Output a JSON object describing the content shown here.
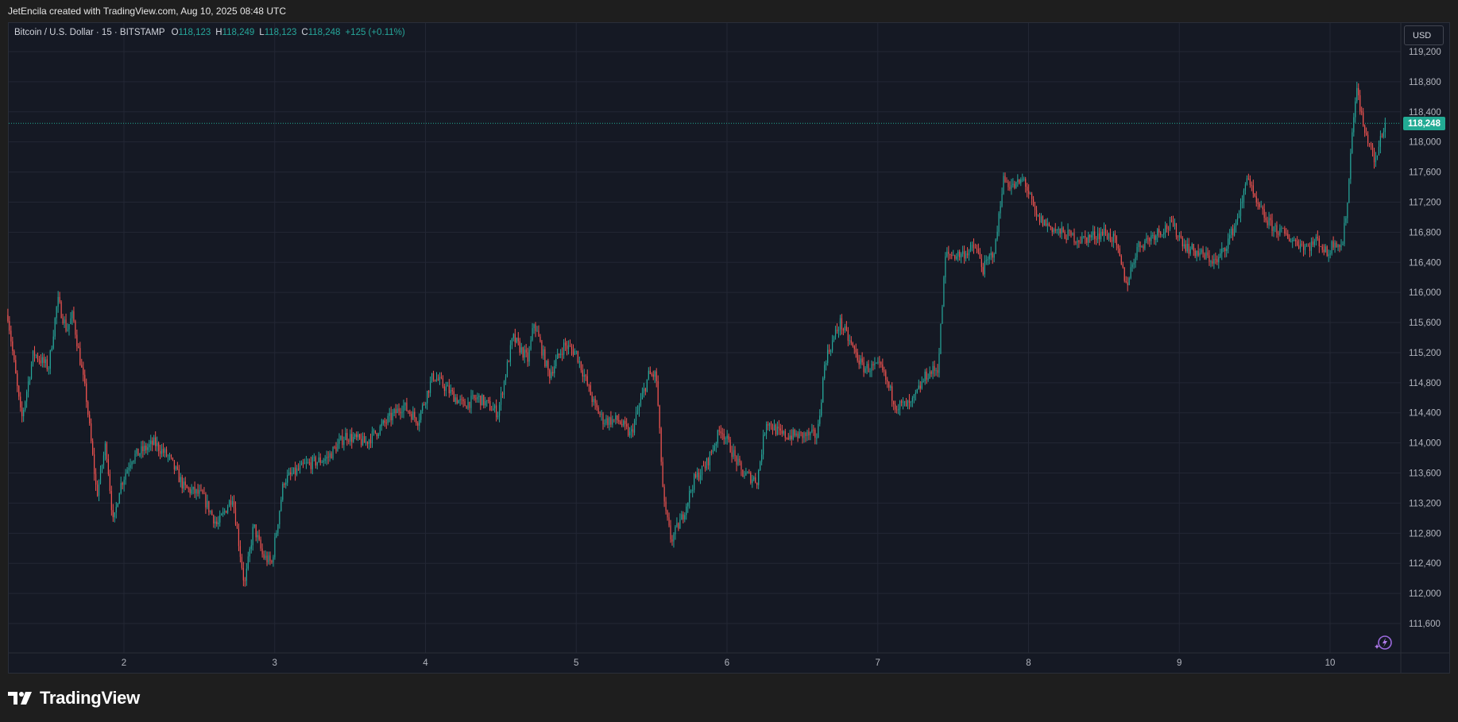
{
  "header": {
    "credit": "JetEncila created with TradingView.com, Aug 10, 2025 08:48 UTC"
  },
  "legend": {
    "symbol": "Bitcoin / U.S. Dollar · 15 · BITSTAMP",
    "open_label": "O",
    "open": "118,123",
    "high_label": "H",
    "high": "118,249",
    "low_label": "L",
    "low": "118,123",
    "close_label": "C",
    "close": "118,248",
    "change": "+125 (+0.11%)"
  },
  "currency_button": "USD",
  "last_price_tag": "118,248",
  "footer": {
    "brand": "TradingView"
  },
  "colors": {
    "up": "#26a69a",
    "down": "#ef5350",
    "background": "#151924",
    "grid": "#232734",
    "last_price_line": "#22ab94"
  },
  "icons": {
    "footer_logo": "tradingview-logo-icon",
    "fx": "sparkle-lightning-icon"
  },
  "chart_data": {
    "type": "candlestick",
    "interval": "15",
    "y_axis": {
      "range": [
        111300,
        119300
      ],
      "ticks": [
        111600,
        112000,
        112400,
        112800,
        113200,
        113600,
        114000,
        114400,
        114800,
        115200,
        115600,
        116000,
        116400,
        116800,
        117200,
        117600,
        118000,
        118400,
        118800,
        119200
      ],
      "tick_labels": [
        "111,600",
        "112,000",
        "112,400",
        "112,800",
        "113,200",
        "113,600",
        "114,000",
        "114,400",
        "114,800",
        "115,200",
        "115,600",
        "116,000",
        "116,400",
        "116,800",
        "117,200",
        "117,600",
        "118,000",
        "118,400",
        "118,800",
        "119,200"
      ]
    },
    "x_axis": {
      "range_days": [
        1.23,
        10.47
      ],
      "ticks": [
        2,
        3,
        4,
        5,
        6,
        7,
        8,
        9,
        10
      ],
      "tick_labels": [
        "2",
        "3",
        "4",
        "5",
        "6",
        "7",
        "8",
        "9",
        "10"
      ]
    },
    "grid": true,
    "last_price": 118248,
    "price_path": [
      [
        1.23,
        115700
      ],
      [
        1.32,
        114300
      ],
      [
        1.4,
        115200
      ],
      [
        1.5,
        115000
      ],
      [
        1.56,
        115900
      ],
      [
        1.62,
        115500
      ],
      [
        1.66,
        115700
      ],
      [
        1.75,
        114600
      ],
      [
        1.82,
        113300
      ],
      [
        1.88,
        114000
      ],
      [
        1.93,
        112900
      ],
      [
        1.97,
        113400
      ],
      [
        2.05,
        113800
      ],
      [
        2.2,
        114000
      ],
      [
        2.3,
        113800
      ],
      [
        2.4,
        113400
      ],
      [
        2.52,
        113300
      ],
      [
        2.62,
        112900
      ],
      [
        2.72,
        113300
      ],
      [
        2.8,
        112100
      ],
      [
        2.86,
        112900
      ],
      [
        2.92,
        112500
      ],
      [
        2.98,
        112400
      ],
      [
        3.06,
        113500
      ],
      [
        3.2,
        113700
      ],
      [
        3.35,
        113800
      ],
      [
        3.47,
        114100
      ],
      [
        3.6,
        114000
      ],
      [
        3.75,
        114300
      ],
      [
        3.85,
        114500
      ],
      [
        3.95,
        114300
      ],
      [
        4.05,
        114900
      ],
      [
        4.2,
        114600
      ],
      [
        4.25,
        114500
      ],
      [
        4.35,
        114600
      ],
      [
        4.48,
        114400
      ],
      [
        4.58,
        115400
      ],
      [
        4.68,
        115100
      ],
      [
        4.72,
        115600
      ],
      [
        4.82,
        114900
      ],
      [
        4.92,
        115300
      ],
      [
        5.0,
        115200
      ],
      [
        5.12,
        114500
      ],
      [
        5.18,
        114300
      ],
      [
        5.28,
        114300
      ],
      [
        5.36,
        114100
      ],
      [
        5.42,
        114500
      ],
      [
        5.48,
        114900
      ],
      [
        5.53,
        114900
      ],
      [
        5.58,
        113200
      ],
      [
        5.63,
        112700
      ],
      [
        5.7,
        113000
      ],
      [
        5.78,
        113500
      ],
      [
        5.86,
        113700
      ],
      [
        5.96,
        114200
      ],
      [
        6.1,
        113600
      ],
      [
        6.2,
        113500
      ],
      [
        6.26,
        114300
      ],
      [
        6.36,
        114100
      ],
      [
        6.5,
        114100
      ],
      [
        6.6,
        114100
      ],
      [
        6.65,
        115100
      ],
      [
        6.75,
        115600
      ],
      [
        6.9,
        115000
      ],
      [
        7.02,
        115000
      ],
      [
        7.12,
        114500
      ],
      [
        7.22,
        114500
      ],
      [
        7.32,
        114900
      ],
      [
        7.4,
        115000
      ],
      [
        7.45,
        116500
      ],
      [
        7.55,
        116500
      ],
      [
        7.65,
        116600
      ],
      [
        7.7,
        116300
      ],
      [
        7.78,
        116600
      ],
      [
        7.83,
        117500
      ],
      [
        7.9,
        117400
      ],
      [
        7.97,
        117500
      ],
      [
        8.05,
        117000
      ],
      [
        8.2,
        116800
      ],
      [
        8.35,
        116700
      ],
      [
        8.5,
        116800
      ],
      [
        8.57,
        116700
      ],
      [
        8.65,
        116100
      ],
      [
        8.72,
        116600
      ],
      [
        8.85,
        116800
      ],
      [
        8.95,
        116900
      ],
      [
        9.05,
        116600
      ],
      [
        9.15,
        116500
      ],
      [
        9.25,
        116400
      ],
      [
        9.35,
        116800
      ],
      [
        9.42,
        117200
      ],
      [
        9.45,
        117600
      ],
      [
        9.5,
        117200
      ],
      [
        9.6,
        116900
      ],
      [
        9.75,
        116700
      ],
      [
        9.85,
        116600
      ],
      [
        9.92,
        116700
      ],
      [
        9.98,
        116500
      ],
      [
        10.03,
        116700
      ],
      [
        10.08,
        116600
      ],
      [
        10.12,
        117300
      ],
      [
        10.15,
        118300
      ],
      [
        10.18,
        118700
      ],
      [
        10.23,
        118100
      ],
      [
        10.26,
        118000
      ],
      [
        10.3,
        117700
      ],
      [
        10.34,
        118100
      ],
      [
        10.37,
        118248
      ]
    ]
  }
}
